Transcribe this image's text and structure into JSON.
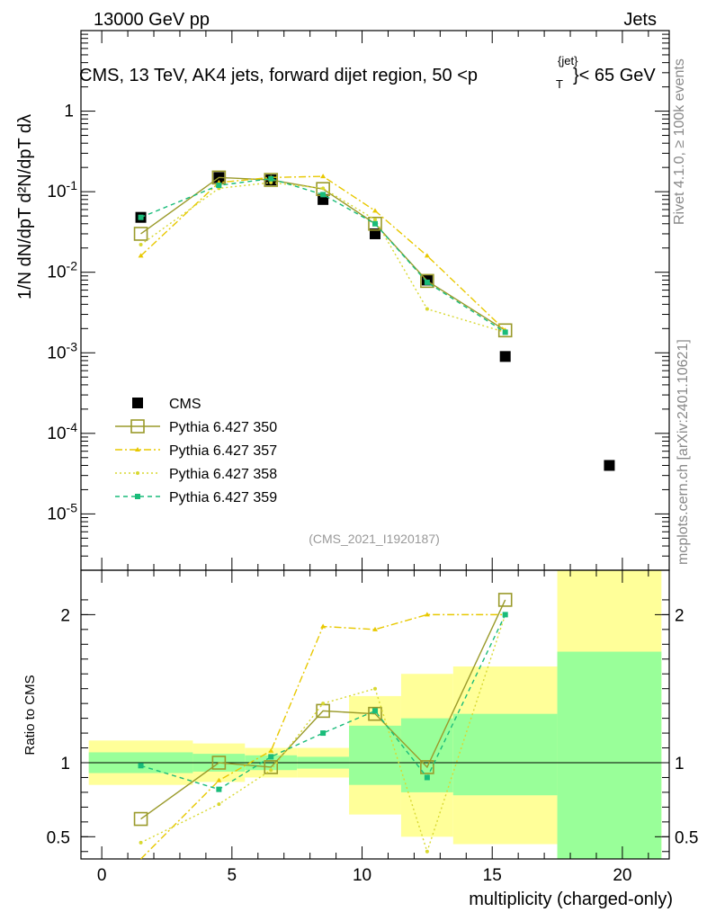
{
  "header": {
    "left": "13000 GeV pp",
    "right": "Jets",
    "plot_title": "CMS, 13 TeV, AK4 jets, forward dijet region, 50 <p",
    "plot_title_sup": "{jet}",
    "plot_title_sub": "T",
    "plot_title_end": "}< 65 GeV",
    "analysis_tag": "(CMS_2021_I1920187)"
  },
  "side_text": {
    "rivet": "Rivet 4.1.0, ≥ 100k events",
    "mcplots": "mcplots.cern.ch [arXiv:2401.10621]"
  },
  "axis": {
    "ylabel_main": "1/N dN/dpT  d²N/dpT dλ",
    "ylabel_ratio": "Ratio to CMS",
    "xlabel": "multiplicity (charged-only)"
  },
  "legend": [
    {
      "name": "CMS"
    },
    {
      "name": "Pythia 6.427 350"
    },
    {
      "name": "Pythia 6.427 357"
    },
    {
      "name": "Pythia 6.427 358"
    },
    {
      "name": "Pythia 6.427 359"
    }
  ],
  "colors": {
    "cms": "#000000",
    "p350": "#9a9a2a",
    "p357": "#e8c800",
    "p358": "#d8d830",
    "p359": "#1abc7a",
    "band_inner": "#99ff99",
    "band_outer": "#ffff99"
  },
  "chart_data": [
    {
      "type": "line",
      "title": "CMS, 13 TeV, AK4 jets, forward dijet region, 50 < pT jet < 65 GeV",
      "xlabel": "multiplicity (charged-only)",
      "ylabel": "1/N dN/dpT d²N/dpT dλ",
      "xlim": [
        -0.8,
        21.8
      ],
      "ylim": [
        2e-06,
        10
      ],
      "yscale": "log",
      "xticks": [
        0,
        5,
        10,
        15,
        20
      ],
      "yticks": [
        {
          "v": 1,
          "label": "1"
        },
        {
          "v": 0.1,
          "label": "10^-1"
        },
        {
          "v": 0.01,
          "label": "10^-2"
        },
        {
          "v": 0.001,
          "label": "10^-3"
        },
        {
          "v": 0.0001,
          "label": "10^-4"
        },
        {
          "v": 1e-05,
          "label": "10^-5"
        }
      ],
      "series": [
        {
          "name": "CMS",
          "x": [
            1.5,
            4.5,
            6.5,
            8.5,
            10.5,
            12.5,
            15.5,
            19.5
          ],
          "values": [
            0.048,
            0.15,
            0.14,
            0.08,
            0.03,
            0.008,
            0.0009,
            4e-05
          ]
        },
        {
          "name": "Pythia 6.427 350",
          "x": [
            1.5,
            4.5,
            6.5,
            8.5,
            10.5,
            12.5,
            15.5
          ],
          "values": [
            0.03,
            0.15,
            0.14,
            0.108,
            0.04,
            0.0078,
            0.0019
          ]
        },
        {
          "name": "Pythia 6.427 357",
          "x": [
            1.5,
            4.5,
            6.5,
            8.5,
            10.5,
            12.5,
            15.5
          ],
          "values": [
            0.016,
            0.13,
            0.15,
            0.155,
            0.058,
            0.016,
            0.0019
          ]
        },
        {
          "name": "Pythia 6.427 358",
          "x": [
            1.5,
            4.5,
            6.5,
            8.5,
            10.5,
            12.5,
            15.5
          ],
          "values": [
            0.022,
            0.11,
            0.13,
            0.11,
            0.045,
            0.0035,
            0.0018
          ]
        },
        {
          "name": "Pythia 6.427 359",
          "x": [
            1.5,
            4.5,
            6.5,
            8.5,
            10.5,
            12.5,
            15.5
          ],
          "values": [
            0.048,
            0.12,
            0.145,
            0.092,
            0.04,
            0.0075,
            0.0018
          ]
        }
      ]
    },
    {
      "type": "line",
      "title": "Ratio to CMS",
      "xlabel": "multiplicity (charged-only)",
      "ylabel": "Ratio to CMS",
      "xlim": [
        -0.8,
        21.8
      ],
      "ylim": [
        0.35,
        2.3
      ],
      "yticks": [
        {
          "v": 0.5,
          "label": "0.5"
        },
        {
          "v": 1,
          "label": "1"
        },
        {
          "v": 2,
          "label": "2"
        }
      ],
      "bands": [
        {
          "x0": -0.5,
          "x1": 3.5,
          "inner": [
            0.93,
            1.07
          ],
          "outer": [
            0.85,
            1.15
          ]
        },
        {
          "x0": 3.5,
          "x1": 5.5,
          "inner": [
            0.94,
            1.06
          ],
          "outer": [
            0.87,
            1.13
          ]
        },
        {
          "x0": 5.5,
          "x1": 7.5,
          "inner": [
            0.95,
            1.05
          ],
          "outer": [
            0.9,
            1.1
          ]
        },
        {
          "x0": 7.5,
          "x1": 9.5,
          "inner": [
            0.96,
            1.04
          ],
          "outer": [
            0.9,
            1.1
          ]
        },
        {
          "x0": 9.5,
          "x1": 11.5,
          "inner": [
            0.85,
            1.25
          ],
          "outer": [
            0.65,
            1.45
          ]
        },
        {
          "x0": 11.5,
          "x1": 13.5,
          "inner": [
            0.8,
            1.3
          ],
          "outer": [
            0.5,
            1.6
          ]
        },
        {
          "x0": 13.5,
          "x1": 17.5,
          "inner": [
            0.78,
            1.33
          ],
          "outer": [
            0.45,
            1.65
          ]
        },
        {
          "x0": 17.5,
          "x1": 21.5,
          "inner": [
            0.35,
            1.75
          ],
          "outer": [
            0.35,
            2.35
          ]
        }
      ],
      "series": [
        {
          "name": "Pythia 6.427 350",
          "x": [
            1.5,
            4.5,
            6.5,
            8.5,
            10.5,
            12.5,
            15.5
          ],
          "values": [
            0.62,
            1.0,
            0.97,
            1.35,
            1.33,
            0.97,
            2.1
          ]
        },
        {
          "name": "Pythia 6.427 357",
          "x": [
            1.5,
            4.5,
            6.5,
            8.5,
            10.5,
            12.5,
            15.5
          ],
          "values": [
            0.33,
            0.88,
            1.08,
            1.92,
            1.9,
            2.0,
            2.0
          ]
        },
        {
          "name": "Pythia 6.427 358",
          "x": [
            1.5,
            4.5,
            6.5,
            8.5,
            10.5,
            12.5,
            15.5
          ],
          "values": [
            0.46,
            0.72,
            0.95,
            1.4,
            1.5,
            0.4,
            2.0
          ]
        },
        {
          "name": "Pythia 6.427 359",
          "x": [
            1.5,
            4.5,
            6.5,
            8.5,
            10.5,
            12.5,
            15.5
          ],
          "values": [
            0.98,
            0.82,
            1.04,
            1.2,
            1.35,
            0.9,
            2.0
          ]
        }
      ]
    }
  ]
}
